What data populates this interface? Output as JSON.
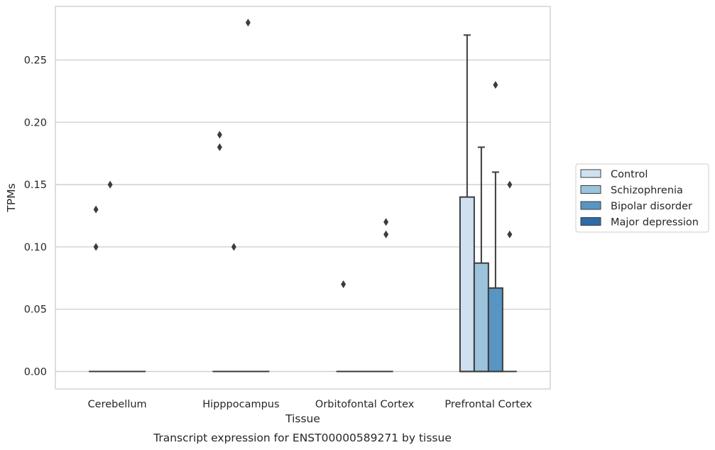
{
  "caption": "Transcript expression for ENST00000589271 by tissue",
  "chart_data": {
    "type": "box",
    "xlabel": "Tissue",
    "ylabel": "TPMs",
    "ylim": [
      -0.014,
      0.293
    ],
    "yticks": [
      "0.00",
      "0.05",
      "0.10",
      "0.15",
      "0.20",
      "0.25"
    ],
    "grid": true,
    "legend_position": "right",
    "categories": [
      "Cerebellum",
      "Hipppocampus",
      "Orbitofontal Cortex",
      "Prefrontal Cortex"
    ],
    "series": [
      {
        "name": "Control",
        "color": "#cfe1f0",
        "boxes": [
          {
            "q1": 0,
            "median": 0,
            "q3": 0,
            "whisker_low": 0,
            "whisker_high": 0,
            "outliers": [
              0.1,
              0.13
            ]
          },
          {
            "q1": 0,
            "median": 0,
            "q3": 0,
            "whisker_low": 0,
            "whisker_high": 0,
            "outliers": [
              0.18,
              0.19
            ]
          },
          {
            "q1": 0,
            "median": 0,
            "q3": 0,
            "whisker_low": 0,
            "whisker_high": 0,
            "outliers": [
              0.07
            ]
          },
          {
            "q1": 0,
            "median": 0,
            "q3": 0.14,
            "whisker_low": 0,
            "whisker_high": 0.27,
            "outliers": []
          }
        ]
      },
      {
        "name": "Schizophrenia",
        "color": "#9bc4dc",
        "boxes": [
          {
            "q1": 0,
            "median": 0,
            "q3": 0,
            "whisker_low": 0,
            "whisker_high": 0,
            "outliers": [
              0.15
            ]
          },
          {
            "q1": 0,
            "median": 0,
            "q3": 0,
            "whisker_low": 0,
            "whisker_high": 0,
            "outliers": [
              0.1
            ]
          },
          {
            "q1": 0,
            "median": 0,
            "q3": 0,
            "whisker_low": 0,
            "whisker_high": 0,
            "outliers": []
          },
          {
            "q1": 0,
            "median": 0,
            "q3": 0.087,
            "whisker_low": 0,
            "whisker_high": 0.18,
            "outliers": []
          }
        ]
      },
      {
        "name": "Bipolar disorder",
        "color": "#5895c3",
        "boxes": [
          {
            "q1": 0,
            "median": 0,
            "q3": 0,
            "whisker_low": 0,
            "whisker_high": 0,
            "outliers": []
          },
          {
            "q1": 0,
            "median": 0,
            "q3": 0,
            "whisker_low": 0,
            "whisker_high": 0,
            "outliers": [
              0.28
            ]
          },
          {
            "q1": 0,
            "median": 0,
            "q3": 0,
            "whisker_low": 0,
            "whisker_high": 0,
            "outliers": []
          },
          {
            "q1": 0,
            "median": 0,
            "q3": 0.067,
            "whisker_low": 0,
            "whisker_high": 0.16,
            "outliers": [
              0.23
            ]
          }
        ]
      },
      {
        "name": "Major depression",
        "color": "#2e6ca8",
        "boxes": [
          {
            "q1": 0,
            "median": 0,
            "q3": 0,
            "whisker_low": 0,
            "whisker_high": 0,
            "outliers": []
          },
          {
            "q1": 0,
            "median": 0,
            "q3": 0,
            "whisker_low": 0,
            "whisker_high": 0,
            "outliers": []
          },
          {
            "q1": 0,
            "median": 0,
            "q3": 0,
            "whisker_low": 0,
            "whisker_high": 0,
            "outliers": [
              0.11,
              0.12
            ]
          },
          {
            "q1": 0,
            "median": 0,
            "q3": 0,
            "whisker_low": 0,
            "whisker_high": 0,
            "outliers": [
              0.11,
              0.15
            ]
          }
        ]
      }
    ]
  }
}
